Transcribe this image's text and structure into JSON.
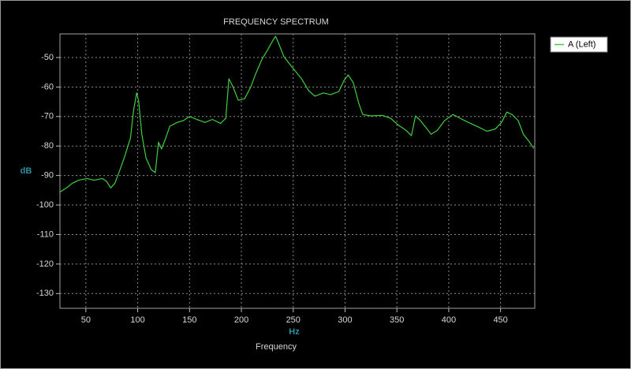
{
  "chart_data": {
    "type": "line",
    "title": "FREQUENCY SPECTRUM",
    "y_label": "dB",
    "x_unit": "Hz",
    "x_label": "Frequency",
    "legend_position": "right",
    "grid": true,
    "xlim": [
      25,
      483
    ],
    "ylim": [
      -135,
      -42
    ],
    "xticks": [
      50,
      100,
      150,
      200,
      250,
      300,
      350,
      400,
      450
    ],
    "yticks": [
      -50,
      -60,
      -70,
      -80,
      -90,
      -100,
      -110,
      -120,
      -130
    ],
    "x": [
      25,
      32,
      37,
      43,
      51,
      58,
      66,
      70,
      74,
      78,
      83,
      87,
      93,
      96,
      99,
      101,
      104,
      108,
      113,
      117,
      120,
      123,
      127,
      131,
      138,
      144,
      150,
      157,
      165,
      172,
      180,
      185,
      188,
      192,
      197,
      203,
      209,
      214,
      220,
      226,
      230,
      233,
      236,
      241,
      247,
      252,
      258,
      265,
      271,
      279,
      286,
      294,
      299,
      303,
      308,
      313,
      317,
      325,
      336,
      344,
      351,
      359,
      364,
      368,
      372,
      377,
      383,
      389,
      396,
      404,
      411,
      419,
      427,
      437,
      445,
      451,
      456,
      461,
      467,
      472,
      478,
      482
    ],
    "series": [
      {
        "name": "A (Left)",
        "color": "#3fcf3f",
        "values": [
          -95.6,
          -94,
          -92.6,
          -91.6,
          -91,
          -91.6,
          -91,
          -92,
          -94.2,
          -92.6,
          -88,
          -84,
          -77.3,
          -68,
          -62,
          -65,
          -76,
          -84,
          -88,
          -89,
          -78.7,
          -81,
          -77.3,
          -73.3,
          -72,
          -71.4,
          -70,
          -71,
          -72,
          -71,
          -72.3,
          -70.6,
          -57.2,
          -60,
          -64.5,
          -64,
          -60,
          -55.4,
          -50.5,
          -47,
          -44.4,
          -42.8,
          -45.2,
          -49.7,
          -52.4,
          -54.6,
          -57.2,
          -61.3,
          -63.1,
          -62,
          -62.6,
          -61.5,
          -57.8,
          -55.9,
          -58.6,
          -65.3,
          -69.3,
          -69.8,
          -69.6,
          -70.6,
          -72.8,
          -74.7,
          -76.5,
          -69.8,
          -71.1,
          -73.3,
          -76,
          -74.7,
          -71.4,
          -69.3,
          -70.6,
          -72,
          -73.3,
          -75,
          -74.2,
          -72,
          -68.5,
          -69.3,
          -71.4,
          -76,
          -78.7,
          -80.8
        ]
      }
    ]
  }
}
